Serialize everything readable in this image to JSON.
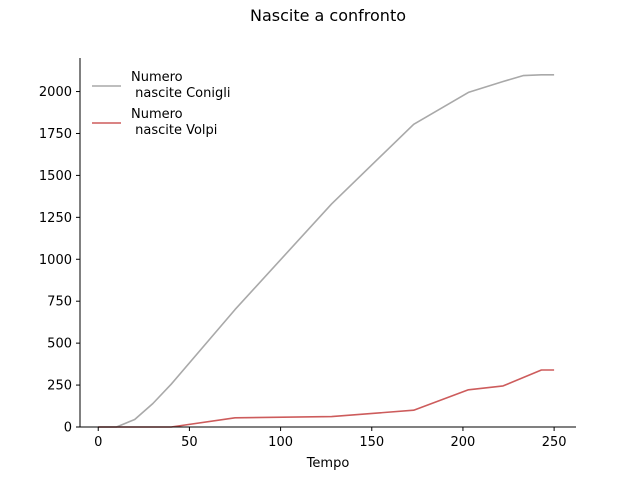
{
  "chart_data": {
    "type": "line",
    "title": "Nascite a confronto",
    "xlabel": "Tempo",
    "ylabel": "",
    "xlim": [
      -10,
      262
    ],
    "ylim": [
      0,
      2200
    ],
    "xticks": [
      0,
      50,
      100,
      150,
      200,
      250
    ],
    "yticks": [
      0,
      250,
      500,
      750,
      1000,
      1250,
      1500,
      1750,
      2000
    ],
    "grid": false,
    "legend": "top-left",
    "series": [
      {
        "name_lines": [
          "Numero",
          " nascite Conigli"
        ],
        "color": "#a9a9a9",
        "points": [
          [
            0,
            0
          ],
          [
            10,
            0
          ],
          [
            20,
            45
          ],
          [
            30,
            140
          ],
          [
            40,
            255
          ],
          [
            75,
            700
          ],
          [
            128,
            1330
          ],
          [
            173,
            1805
          ],
          [
            203,
            1995
          ],
          [
            222,
            2060
          ],
          [
            233,
            2095
          ],
          [
            243,
            2100
          ],
          [
            250,
            2100
          ]
        ]
      },
      {
        "name_lines": [
          "Numero",
          " nascite Volpi"
        ],
        "color": "#cd5c5c",
        "points": [
          [
            0,
            0
          ],
          [
            40,
            0
          ],
          [
            75,
            55
          ],
          [
            128,
            62
          ],
          [
            173,
            100
          ],
          [
            203,
            222
          ],
          [
            222,
            245
          ],
          [
            243,
            340
          ],
          [
            250,
            340
          ]
        ]
      }
    ]
  }
}
